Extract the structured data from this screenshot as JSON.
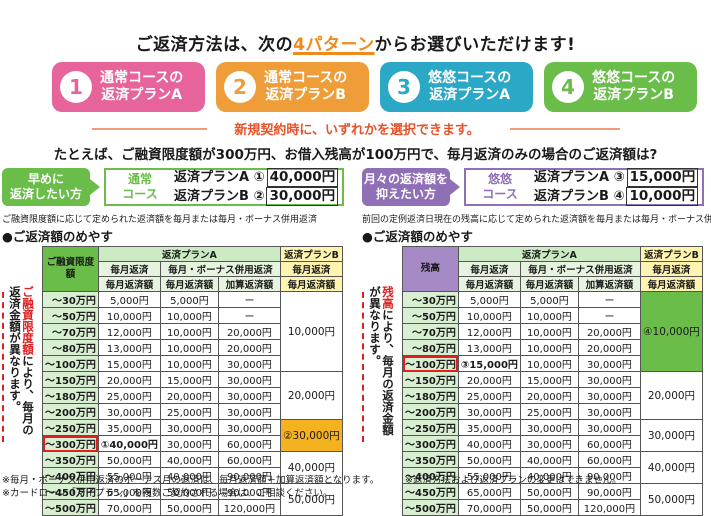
{
  "title": {
    "pre": "ご返済方法は、次の",
    "hl": "4パターン",
    "post": "からお選びいただけます!"
  },
  "plans": [
    {
      "num": "1",
      "line1": "通常コースの",
      "line2": "返済プランA",
      "color": "#e6649a"
    },
    {
      "num": "2",
      "line1": "通常コースの",
      "line2": "返済プランB",
      "color": "#ef9d38"
    },
    {
      "num": "3",
      "line1": "悠悠コースの",
      "line2": "返済プランA",
      "color": "#2ba8c6"
    },
    {
      "num": "4",
      "line1": "悠悠コースの",
      "line2": "返済プランB",
      "color": "#6bbd4a"
    }
  ],
  "subtitle": "新規契約時に、いずれかを選択できます。",
  "example": "たとえば、ご融資限度額が300万円、お借入残高が100万円で、毎月返済のみの場合のご返済額は?",
  "left": {
    "tag_l1": "早めに",
    "tag_l2": "返済したい方",
    "course_l1": "通常",
    "course_l2": "コース",
    "planA_label": "返済プランA",
    "planA_mark": "①",
    "planA_amount": "40,000円",
    "planB_label": "返済プランB",
    "planB_mark": "②",
    "planB_amount": "30,000円",
    "note": "ご融資限度額に応じて定められた返済額を毎月または毎月・ボーナス併用返済",
    "meyasu": "●ご返済額のめやす",
    "side_red": "ご融資限度額",
    "side_black": "により、毎月の返済金額が異なります。",
    "col_first": "ご融資限度額",
    "planA_head": "返済プランA",
    "planB_head": "返済プランB",
    "sub_monthly": "毎月返済",
    "sub_bonus": "毎月・ボーナス併用返済",
    "amt_monthly": "毎月返済額",
    "amt_add": "加算返済額",
    "rows": [
      [
        "〜30万円",
        "5,000円",
        "5,000円",
        "ー"
      ],
      [
        "〜50万円",
        "10,000円",
        "10,000円",
        "ー"
      ],
      [
        "〜70万円",
        "12,000円",
        "10,000円",
        "20,000円"
      ],
      [
        "〜80万円",
        "13,000円",
        "10,000円",
        "20,000円"
      ],
      [
        "〜100万円",
        "15,000円",
        "10,000円",
        "30,000円"
      ],
      [
        "〜150万円",
        "20,000円",
        "15,000円",
        "30,000円"
      ],
      [
        "〜180万円",
        "25,000円",
        "20,000円",
        "30,000円"
      ],
      [
        "〜200万円",
        "30,000円",
        "25,000円",
        "30,000円"
      ],
      [
        "〜250万円",
        "35,000円",
        "30,000円",
        "30,000円"
      ],
      [
        "〜300万円",
        "40,000円",
        "30,000円",
        "60,000円"
      ],
      [
        "〜350万円",
        "50,000円",
        "40,000円",
        "60,000円"
      ],
      [
        "〜400万円",
        "55,000円",
        "40,000円",
        "90,000円"
      ],
      [
        "〜450万円",
        "65,000円",
        "50,000円",
        "90,000円"
      ],
      [
        "〜500万円",
        "70,000円",
        "50,000円",
        "120,000円"
      ]
    ],
    "hl_mark": "①",
    "b_groups": [
      "10,000円",
      "20,000円",
      "②30,000円",
      "40,000円",
      "50,000円"
    ]
  },
  "right": {
    "tag_l1": "月々の返済額を",
    "tag_l2": "抑えたい方",
    "course_l1": "悠悠",
    "course_l2": "コース",
    "planA_label": "返済プランA",
    "planA_mark": "③",
    "planA_amount": "15,000円",
    "planB_label": "返済プランB",
    "planB_mark": "④",
    "planB_amount": "10,000円",
    "note": "前回の定例返済日現在の残高に応じて定められた返済額を毎月または毎月・ボーナス併用返済",
    "meyasu": "●ご返済額のめやす",
    "side_red": "残高",
    "side_black": "により、毎月の返済金額が異なります。",
    "col_first": "残高",
    "planA_head": "返済プランA",
    "planB_head": "返済プランB",
    "sub_monthly": "毎月返済",
    "sub_bonus": "毎月・ボーナス併用返済",
    "amt_monthly": "毎月返済額",
    "amt_add": "加算返済額",
    "rows": [
      [
        "〜30万円",
        "5,000円",
        "5,000円",
        "ー"
      ],
      [
        "〜50万円",
        "10,000円",
        "10,000円",
        "ー"
      ],
      [
        "〜70万円",
        "12,000円",
        "10,000円",
        "20,000円"
      ],
      [
        "〜80万円",
        "13,000円",
        "10,000円",
        "20,000円"
      ],
      [
        "〜100万円",
        "15,000円",
        "10,000円",
        "30,000円"
      ],
      [
        "〜150万円",
        "20,000円",
        "15,000円",
        "30,000円"
      ],
      [
        "〜180万円",
        "25,000円",
        "20,000円",
        "30,000円"
      ],
      [
        "〜200万円",
        "30,000円",
        "25,000円",
        "30,000円"
      ],
      [
        "〜250万円",
        "35,000円",
        "30,000円",
        "30,000円"
      ],
      [
        "〜300万円",
        "40,000円",
        "30,000円",
        "60,000円"
      ],
      [
        "〜350万円",
        "50,000円",
        "40,000円",
        "60,000円"
      ],
      [
        "〜400万円",
        "55,000円",
        "40,000円",
        "90,000円"
      ],
      [
        "〜450万円",
        "65,000円",
        "50,000円",
        "90,000円"
      ],
      [
        "〜500万円",
        "70,000円",
        "50,000円",
        "120,000円"
      ]
    ],
    "hl_mark": "③",
    "b_groups": [
      "④10,000円",
      "20,000円",
      "30,000円",
      "40,000円",
      "50,000円"
    ]
  },
  "footer": {
    "f1": "※毎月・ボーナス併用返済のボーナス月の返済は、毎月返済額＋加算返済額となります。",
    "f2": "※返済方法および返済プランの変更はできません。",
    "f3": "※カードローン「マイプラン」を複数ご契約される場合は、ご相談ください。"
  }
}
